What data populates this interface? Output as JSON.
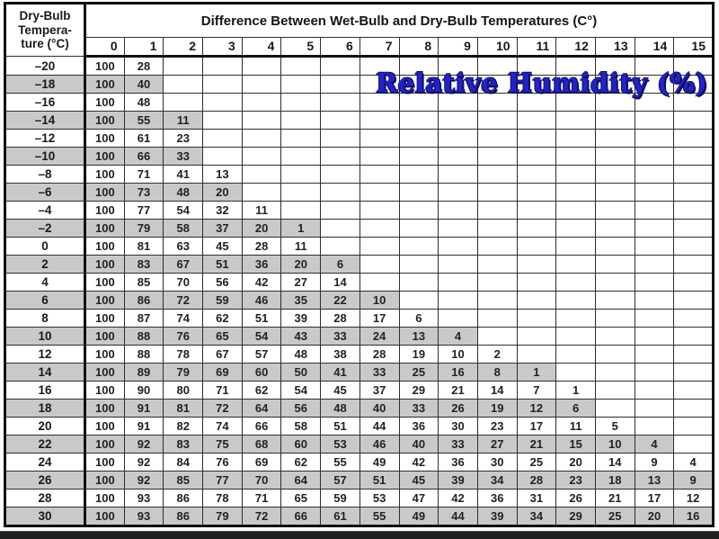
{
  "overlay": {
    "title": "Relative Humidity (%)"
  },
  "colors": {
    "overlay_blue": "#2222cc",
    "overlay_outline": "#10105e",
    "row_shade": "#c9c9c9",
    "bottom_bar": "#202020",
    "table_border": "#101010"
  },
  "chart_data": {
    "type": "table",
    "title": "Difference Between Wet-Bulb and Dry-Bulb Temperatures (C°)",
    "corner_label_lines": [
      "Dry-Bulb",
      "Tempera-",
      "ture (°C)"
    ],
    "corner_label_full": "Dry-Bulb Temperature (°C)",
    "column_headers": [
      "0",
      "1",
      "2",
      "3",
      "4",
      "5",
      "6",
      "7",
      "8",
      "9",
      "10",
      "11",
      "12",
      "13",
      "14",
      "15"
    ],
    "rows": [
      {
        "label": "–20",
        "shaded": false,
        "values": [
          100,
          28
        ]
      },
      {
        "label": "–18",
        "shaded": true,
        "values": [
          100,
          40
        ]
      },
      {
        "label": "–16",
        "shaded": false,
        "values": [
          100,
          48
        ]
      },
      {
        "label": "–14",
        "shaded": true,
        "values": [
          100,
          55,
          11
        ]
      },
      {
        "label": "–12",
        "shaded": false,
        "values": [
          100,
          61,
          23
        ]
      },
      {
        "label": "–10",
        "shaded": true,
        "values": [
          100,
          66,
          33
        ]
      },
      {
        "label": "–8",
        "shaded": false,
        "values": [
          100,
          71,
          41,
          13
        ]
      },
      {
        "label": "–6",
        "shaded": true,
        "values": [
          100,
          73,
          48,
          20
        ]
      },
      {
        "label": "–4",
        "shaded": false,
        "values": [
          100,
          77,
          54,
          32,
          11
        ]
      },
      {
        "label": "–2",
        "shaded": true,
        "values": [
          100,
          79,
          58,
          37,
          20,
          1
        ]
      },
      {
        "label": "0",
        "shaded": false,
        "values": [
          100,
          81,
          63,
          45,
          28,
          11
        ]
      },
      {
        "label": "2",
        "shaded": true,
        "values": [
          100,
          83,
          67,
          51,
          36,
          20,
          6
        ]
      },
      {
        "label": "4",
        "shaded": false,
        "values": [
          100,
          85,
          70,
          56,
          42,
          27,
          14
        ]
      },
      {
        "label": "6",
        "shaded": true,
        "values": [
          100,
          86,
          72,
          59,
          46,
          35,
          22,
          10
        ]
      },
      {
        "label": "8",
        "shaded": false,
        "values": [
          100,
          87,
          74,
          62,
          51,
          39,
          28,
          17,
          6
        ]
      },
      {
        "label": "10",
        "shaded": true,
        "values": [
          100,
          88,
          76,
          65,
          54,
          43,
          33,
          24,
          13,
          4
        ]
      },
      {
        "label": "12",
        "shaded": false,
        "values": [
          100,
          88,
          78,
          67,
          57,
          48,
          38,
          28,
          19,
          10,
          2
        ]
      },
      {
        "label": "14",
        "shaded": true,
        "values": [
          100,
          89,
          79,
          69,
          60,
          50,
          41,
          33,
          25,
          16,
          8,
          1
        ]
      },
      {
        "label": "16",
        "shaded": false,
        "values": [
          100,
          90,
          80,
          71,
          62,
          54,
          45,
          37,
          29,
          21,
          14,
          7,
          1
        ]
      },
      {
        "label": "18",
        "shaded": true,
        "values": [
          100,
          91,
          81,
          72,
          64,
          56,
          48,
          40,
          33,
          26,
          19,
          12,
          6
        ]
      },
      {
        "label": "20",
        "shaded": false,
        "values": [
          100,
          91,
          82,
          74,
          66,
          58,
          51,
          44,
          36,
          30,
          23,
          17,
          11,
          5
        ]
      },
      {
        "label": "22",
        "shaded": true,
        "values": [
          100,
          92,
          83,
          75,
          68,
          60,
          53,
          46,
          40,
          33,
          27,
          21,
          15,
          10,
          4
        ]
      },
      {
        "label": "24",
        "shaded": false,
        "values": [
          100,
          92,
          84,
          76,
          69,
          62,
          55,
          49,
          42,
          36,
          30,
          25,
          20,
          14,
          9,
          4
        ]
      },
      {
        "label": "26",
        "shaded": true,
        "values": [
          100,
          92,
          85,
          77,
          70,
          64,
          57,
          51,
          45,
          39,
          34,
          28,
          23,
          18,
          13,
          9
        ]
      },
      {
        "label": "28",
        "shaded": false,
        "values": [
          100,
          93,
          86,
          78,
          71,
          65,
          59,
          53,
          47,
          42,
          36,
          31,
          26,
          21,
          17,
          12
        ]
      },
      {
        "label": "30",
        "shaded": true,
        "values": [
          100,
          93,
          86,
          79,
          72,
          66,
          61,
          55,
          49,
          44,
          39,
          34,
          29,
          25,
          20,
          16
        ]
      }
    ]
  }
}
